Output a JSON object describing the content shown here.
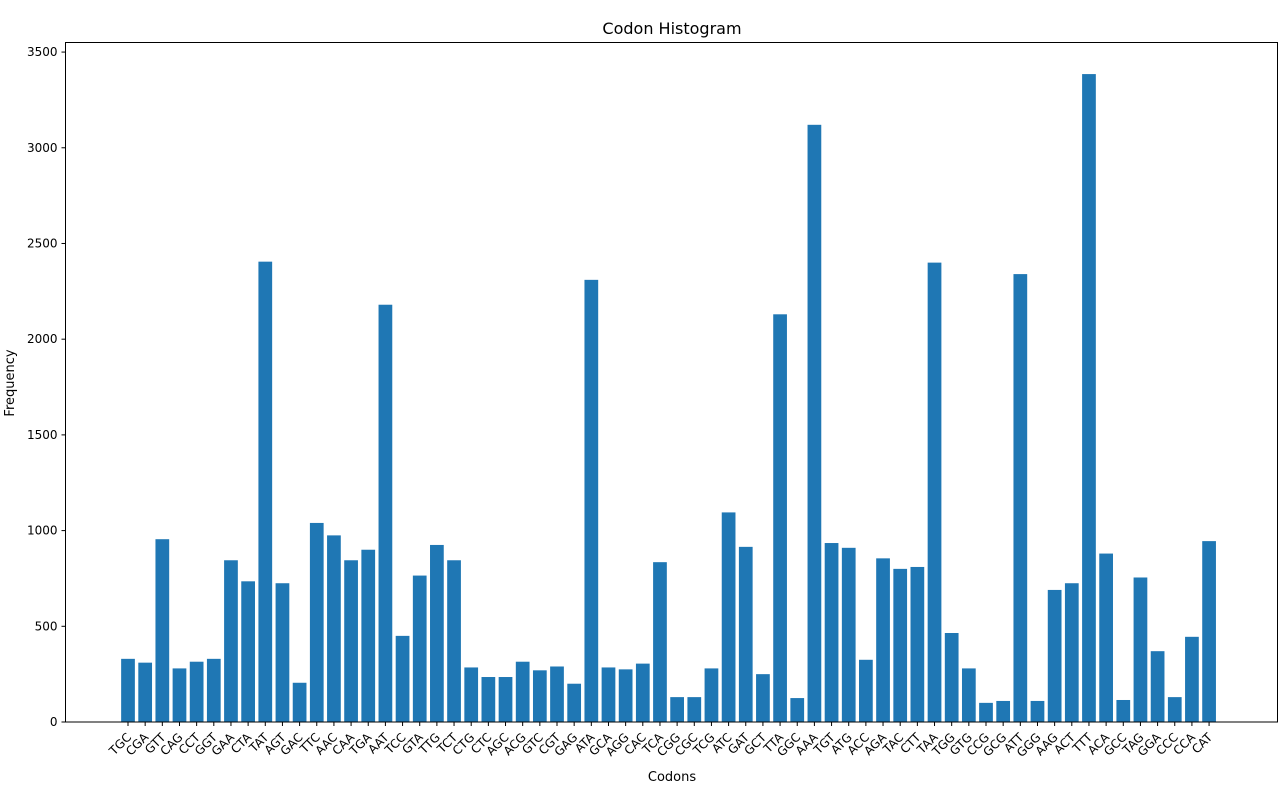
{
  "chart_data": {
    "type": "bar",
    "title": "Codon Histogram",
    "xlabel": "Codons",
    "ylabel": "Frequency",
    "ylim": [
      0,
      3550
    ],
    "yticks": [
      0,
      500,
      1000,
      1500,
      2000,
      2500,
      3000,
      3500
    ],
    "grid": false,
    "bar_color": "#1f77b4",
    "categories": [
      "TGC",
      "CGA",
      "GTT",
      "CAG",
      "CCT",
      "GGT",
      "GAA",
      "CTA",
      "TAT",
      "AGT",
      "GAC",
      "TTC",
      "AAC",
      "CAA",
      "TGA",
      "AAT",
      "TCC",
      "GTA",
      "TTG",
      "TCT",
      "CTG",
      "CTC",
      "AGC",
      "ACG",
      "GTC",
      "CGT",
      "GAG",
      "ATA",
      "GCA",
      "AGG",
      "CAC",
      "TCA",
      "CGG",
      "CGC",
      "TCG",
      "ATC",
      "GAT",
      "GCT",
      "TTA",
      "GGC",
      "AAA",
      "TGT",
      "ATG",
      "ACC",
      "AGA",
      "TAC",
      "CTT",
      "TAA",
      "TGG",
      "GTG",
      "CCG",
      "GCG",
      "ATT",
      "GGG",
      "AAG",
      "ACT",
      "TTT",
      "ACA",
      "GCC",
      "TAG",
      "GGA",
      "CCC",
      "CCA",
      "CAT"
    ],
    "values": [
      330,
      310,
      955,
      280,
      315,
      330,
      845,
      735,
      2405,
      725,
      205,
      1040,
      975,
      845,
      900,
      2180,
      450,
      765,
      925,
      845,
      285,
      235,
      235,
      315,
      270,
      290,
      200,
      2310,
      285,
      275,
      305,
      835,
      130,
      130,
      280,
      1095,
      915,
      250,
      2130,
      125,
      3120,
      935,
      910,
      325,
      855,
      800,
      810,
      2400,
      465,
      280,
      100,
      110,
      2340,
      110,
      690,
      725,
      3385,
      880,
      115,
      755,
      370,
      130,
      445,
      945
    ]
  }
}
